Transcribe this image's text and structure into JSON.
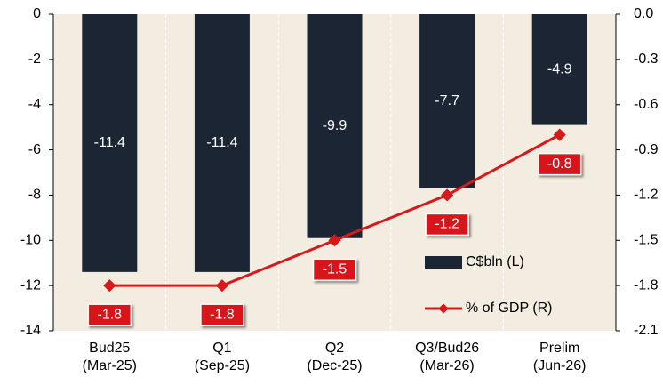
{
  "chart_data": {
    "type": "bar_line",
    "categories": [
      [
        "Bud25",
        "(Mar-25)"
      ],
      [
        "Q1",
        "(Sep-25)"
      ],
      [
        "Q2",
        "(Dec-25)"
      ],
      [
        "Q3/Bud26",
        "(Mar-26)"
      ],
      [
        "Prelim",
        "(Jun-26)"
      ]
    ],
    "series": [
      {
        "name": "C$bln (L)",
        "type": "bar",
        "color": "#1c2533",
        "values": [
          -11.4,
          -11.4,
          -9.9,
          -7.7,
          -4.9
        ]
      },
      {
        "name": "% of GDP (R)",
        "type": "line",
        "axis": "y2",
        "color": "#d7191c",
        "values": [
          -1.8,
          -1.8,
          -1.5,
          -1.2,
          -0.8
        ]
      }
    ],
    "ylim": [
      -14,
      0
    ],
    "yticks": [
      0,
      -2,
      -4,
      -6,
      -8,
      -10,
      -12,
      -14
    ],
    "y2lim": [
      -2.1,
      0
    ],
    "y2ticks": [
      {
        "value": 0,
        "label": "0.0"
      },
      -0.3,
      -0.6,
      -0.9,
      -1.2,
      -1.5,
      -1.8,
      -2.1
    ],
    "legend": "bottom-right",
    "background": "#f3ece1"
  }
}
